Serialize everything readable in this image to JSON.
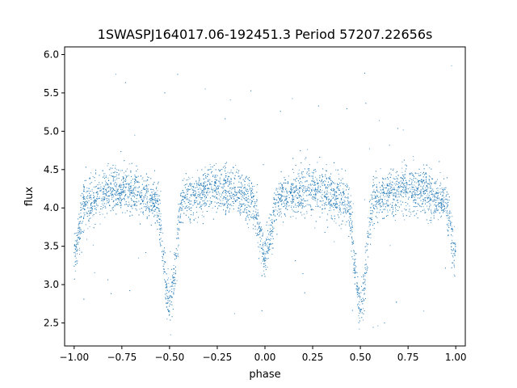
{
  "chart_data": {
    "type": "scatter",
    "title": "1SWASPJ164017.06-192451.3 Period 57207.22656s",
    "xlabel": "phase",
    "ylabel": "flux",
    "xlim": [
      -1.05,
      1.05
    ],
    "ylim": [
      2.2,
      6.1
    ],
    "xticks": [
      -1.0,
      -0.75,
      -0.5,
      -0.25,
      0.0,
      0.25,
      0.5,
      0.75,
      1.0
    ],
    "xtick_labels": [
      "−1.00",
      "−0.75",
      "−0.50",
      "−0.25",
      "0.00",
      "0.25",
      "0.50",
      "0.75",
      "1.00"
    ],
    "yticks": [
      2.5,
      3.0,
      3.5,
      4.0,
      4.5,
      5.0,
      5.5,
      6.0
    ],
    "ytick_labels": [
      "2.5",
      "3.0",
      "3.5",
      "4.0",
      "4.5",
      "5.0",
      "5.5",
      "6.0"
    ],
    "grid": false,
    "marker_color": "#1f77b4",
    "light_curve_model": {
      "baseline_flux": 4.15,
      "primary_eclipse": {
        "phase": -0.5,
        "depth_min_flux": 2.85,
        "half_width": 0.07
      },
      "primary_eclipse_repeat": {
        "phase": 0.5,
        "depth_min_flux": 2.85,
        "half_width": 0.07
      },
      "secondary_eclipse": {
        "phase": 0.0,
        "depth_min_flux": 3.5,
        "half_width": 0.07
      },
      "secondary_eclipse_repeat": {
        "phase": -1.0,
        "depth_min_flux": 3.5,
        "half_width": 0.06
      },
      "secondary_eclipse_repeat_2": {
        "phase": 1.0,
        "depth_min_flux": 3.5,
        "half_width": 0.06
      },
      "maxima": [
        {
          "phase": -0.8,
          "flux": 4.25
        },
        {
          "phase": -0.25,
          "flux": 4.25
        },
        {
          "phase": 0.25,
          "flux": 4.25
        },
        {
          "phase": 0.8,
          "flux": 4.25
        }
      ],
      "scatter_sigma": 0.15,
      "outlier_range": [
        2.4,
        6.0
      ]
    }
  }
}
